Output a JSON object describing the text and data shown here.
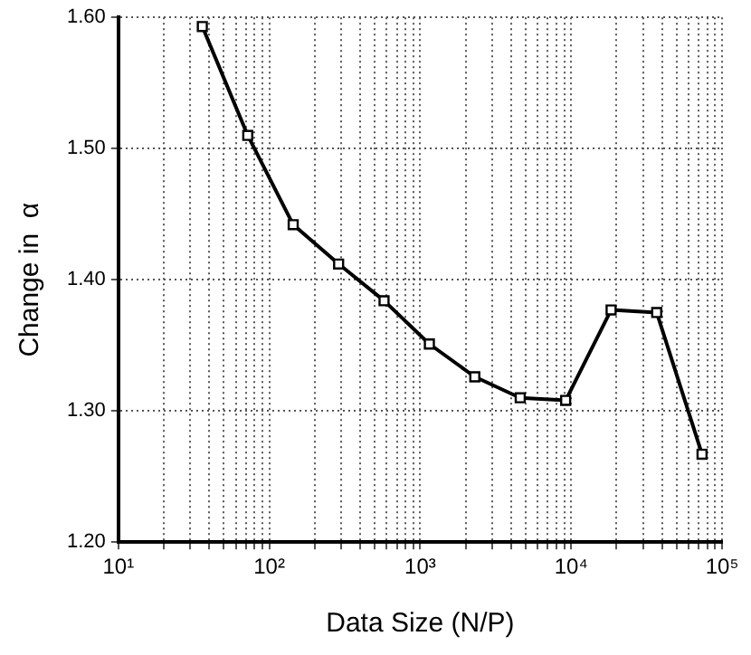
{
  "chart_data": {
    "type": "line",
    "xlabel": "Data Size (N/P)",
    "ylabel": "Change in  α",
    "x": [
      36,
      72,
      144,
      288,
      576,
      1150,
      2300,
      4600,
      9200,
      18400,
      36900,
      73700
    ],
    "series": [
      {
        "color": "#000000",
        "values": [
          1.593,
          1.51,
          1.442,
          1.412,
          1.384,
          1.351,
          1.326,
          1.31,
          1.308,
          1.377,
          1.375,
          1.267
        ]
      }
    ],
    "log": "x",
    "xlim": [
      10,
      100000
    ],
    "xticks": [
      {
        "value": 10,
        "label": "10¹"
      },
      {
        "value": 20,
        "label": null
      },
      {
        "value": 30,
        "label": null
      },
      {
        "value": 40,
        "label": null
      },
      {
        "value": 50,
        "label": null
      },
      {
        "value": 60,
        "label": null
      },
      {
        "value": 70,
        "label": null
      },
      {
        "value": 80,
        "label": null
      },
      {
        "value": 90,
        "label": null
      },
      {
        "value": 100,
        "label": "10²"
      },
      {
        "value": 200,
        "label": null
      },
      {
        "value": 300,
        "label": null
      },
      {
        "value": 400,
        "label": null
      },
      {
        "value": 500,
        "label": null
      },
      {
        "value": 600,
        "label": null
      },
      {
        "value": 700,
        "label": null
      },
      {
        "value": 800,
        "label": null
      },
      {
        "value": 900,
        "label": null
      },
      {
        "value": 1000,
        "label": "10³"
      },
      {
        "value": 2000,
        "label": null
      },
      {
        "value": 3000,
        "label": null
      },
      {
        "value": 4000,
        "label": null
      },
      {
        "value": 5000,
        "label": null
      },
      {
        "value": 6000,
        "label": null
      },
      {
        "value": 7000,
        "label": null
      },
      {
        "value": 8000,
        "label": null
      },
      {
        "value": 9000,
        "label": null
      },
      {
        "value": 10000,
        "label": "10⁴"
      },
      {
        "value": 20000,
        "label": null
      },
      {
        "value": 30000,
        "label": null
      },
      {
        "value": 40000,
        "label": null
      },
      {
        "value": 50000,
        "label": null
      },
      {
        "value": 60000,
        "label": null
      },
      {
        "value": 70000,
        "label": null
      },
      {
        "value": 80000,
        "label": null
      },
      {
        "value": 90000,
        "label": null
      },
      {
        "value": 100000,
        "label": "10⁵"
      }
    ],
    "ylim": [
      1.2,
      1.6
    ],
    "yticks": [
      {
        "value": 1.2,
        "label": "1.20"
      },
      {
        "value": 1.3,
        "label": "1.30"
      },
      {
        "value": 1.4,
        "label": "1.40"
      },
      {
        "value": 1.5,
        "label": "1.50"
      },
      {
        "value": 1.6,
        "label": "1.60"
      }
    ],
    "grid": true,
    "legend": false,
    "marker": "square",
    "line_style": "solid"
  }
}
